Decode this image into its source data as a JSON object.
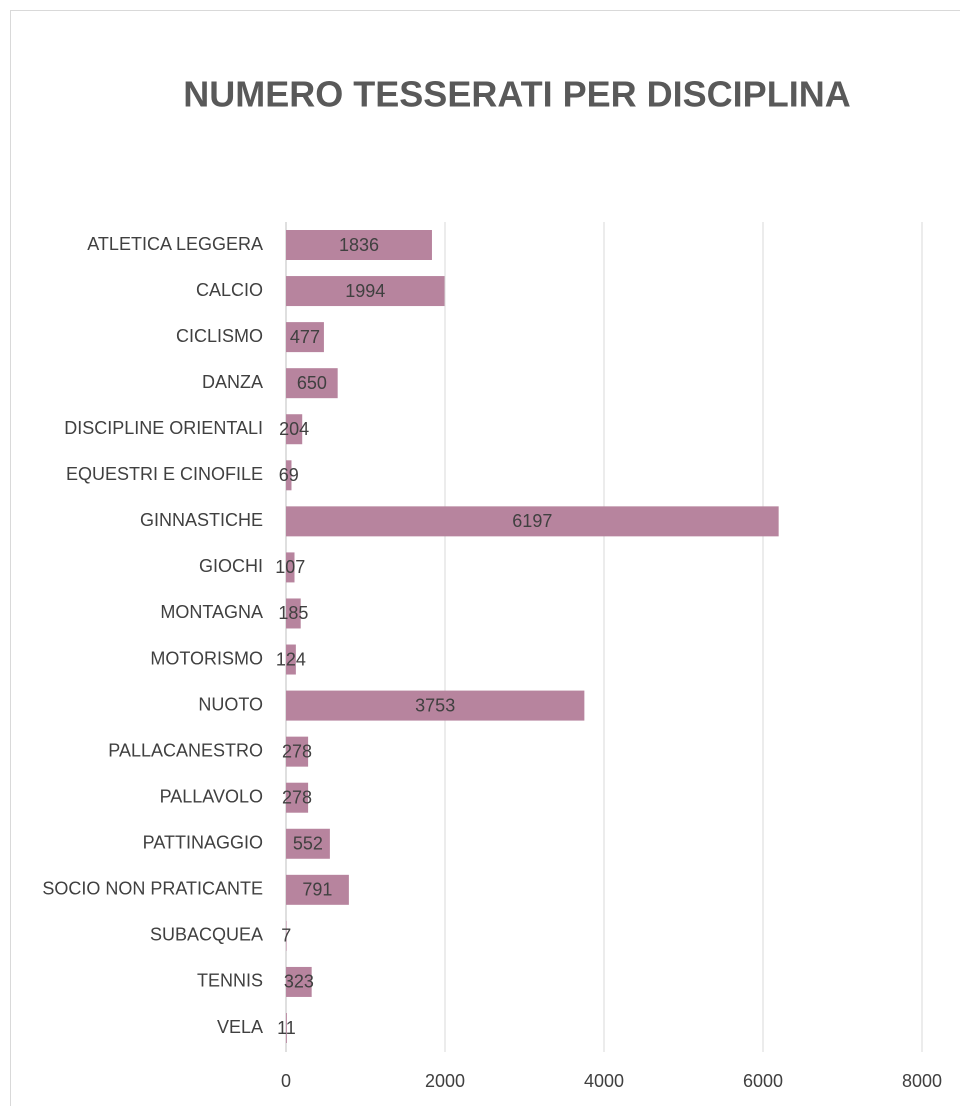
{
  "chart_data": {
    "type": "bar",
    "orientation": "horizontal",
    "title": "NUMERO TESSERATI PER DISCIPLINA",
    "categories": [
      "ATLETICA LEGGERA",
      "CALCIO",
      "CICLISMO",
      "DANZA",
      "DISCIPLINE ORIENTALI",
      "EQUESTRI E CINOFILE",
      "GINNASTICHE",
      "GIOCHI",
      "MONTAGNA",
      "MOTORISMO",
      "NUOTO",
      "PALLACANESTRO",
      "PALLAVOLO",
      "PATTINAGGIO",
      "SOCIO NON PRATICANTE",
      "SUBACQUEA",
      "TENNIS",
      "VELA"
    ],
    "values": [
      1836,
      1994,
      477,
      650,
      204,
      69,
      6197,
      107,
      185,
      124,
      3753,
      278,
      278,
      552,
      791,
      7,
      323,
      11
    ],
    "color": "#b7849e",
    "xlim": [
      0,
      8000
    ],
    "xticks": [
      0,
      2000,
      4000,
      6000,
      8000
    ],
    "grid": true
  }
}
